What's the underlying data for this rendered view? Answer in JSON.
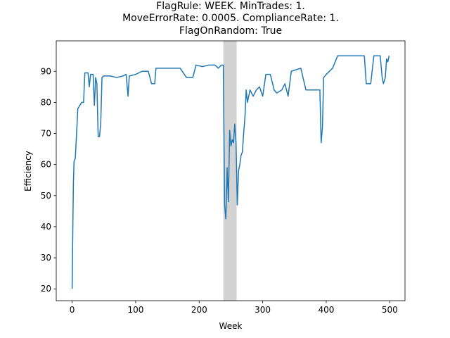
{
  "chart_data": {
    "type": "line",
    "title_lines": [
      "FlagRule: WEEK. MinTrades: 1.",
      "MoveErrorRate: 0.0005. ComplianceRate: 1.",
      "FlagOnRandom: True"
    ],
    "x_label": "Week",
    "y_label": "Efficiency",
    "xlim": [
      -25,
      524
    ],
    "ylim": [
      16.2,
      99.8
    ],
    "xticks": [
      0,
      100,
      200,
      300,
      400,
      500
    ],
    "yticks": [
      20,
      30,
      40,
      50,
      60,
      70,
      80,
      90
    ],
    "shade": [
      238,
      259
    ],
    "shade_color": "#d3d3d3",
    "series": [
      {
        "color": "#1f77b4",
        "x": [
          0,
          1,
          2,
          3,
          5,
          7,
          9,
          12,
          15,
          18,
          20,
          25,
          27,
          29,
          33,
          35,
          37,
          39,
          41,
          43,
          45,
          47,
          50,
          60,
          70,
          80,
          85,
          88,
          90,
          100,
          110,
          120,
          125,
          130,
          132,
          150,
          160,
          170,
          180,
          190,
          195,
          205,
          215,
          225,
          230,
          235,
          238,
          240,
          242,
          244,
          246,
          248,
          250,
          252,
          254,
          256,
          258,
          260,
          262,
          264,
          266,
          268,
          270,
          272,
          274,
          276,
          280,
          285,
          290,
          295,
          300,
          305,
          312,
          318,
          322,
          330,
          335,
          340,
          345,
          360,
          368,
          375,
          385,
          390,
          392,
          394,
          396,
          400,
          410,
          418,
          430,
          440,
          450,
          460,
          463,
          470,
          475,
          485,
          488,
          490,
          493,
          495,
          497,
          499
        ],
        "values": [
          20,
          38,
          54,
          61,
          62,
          70,
          78,
          79,
          80,
          80,
          89.5,
          89.5,
          85,
          89,
          89,
          79,
          88,
          86,
          69,
          69,
          73,
          88,
          88.5,
          88.5,
          88,
          88.5,
          89,
          82,
          88.5,
          89,
          90,
          90,
          86,
          86,
          91,
          91,
          91,
          91,
          88,
          88,
          92,
          91.5,
          92,
          92,
          91,
          92,
          92,
          47,
          42.5,
          59,
          48,
          71,
          66,
          68,
          67,
          73,
          67,
          47,
          58,
          60,
          63,
          64,
          70,
          75,
          84,
          80,
          84,
          82,
          84,
          85,
          82,
          89,
          89,
          84,
          83,
          84,
          86,
          82,
          90,
          91,
          84,
          84,
          84,
          84,
          67,
          72,
          88,
          89,
          91,
          95,
          95,
          95,
          95,
          95,
          86,
          86,
          95,
          95,
          88,
          86,
          88,
          94,
          93,
          95
        ]
      }
    ]
  }
}
